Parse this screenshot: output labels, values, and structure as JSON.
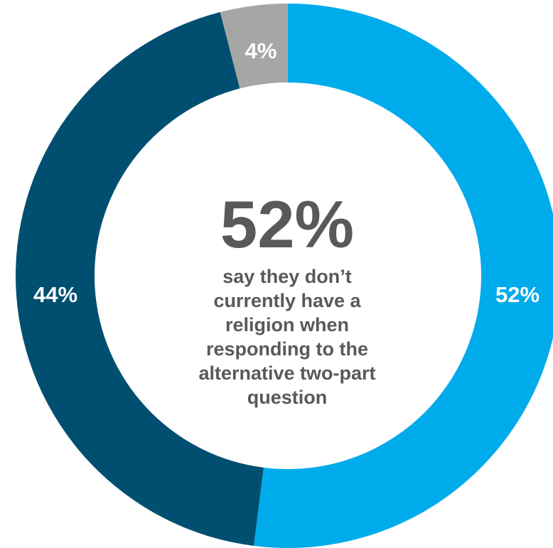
{
  "chart_data": {
    "type": "pie",
    "style": "donut",
    "slices": [
      {
        "label": "52%",
        "value": 52,
        "color": "#00ABEB"
      },
      {
        "label": "44%",
        "value": 44,
        "color": "#004F71"
      },
      {
        "label": "4%",
        "value": 4,
        "color": "#A6A6A6"
      }
    ],
    "center": {
      "value": "52%",
      "caption": "say they don’t currently have a religion when responding to the alternative two-part question"
    },
    "legend": "none"
  }
}
